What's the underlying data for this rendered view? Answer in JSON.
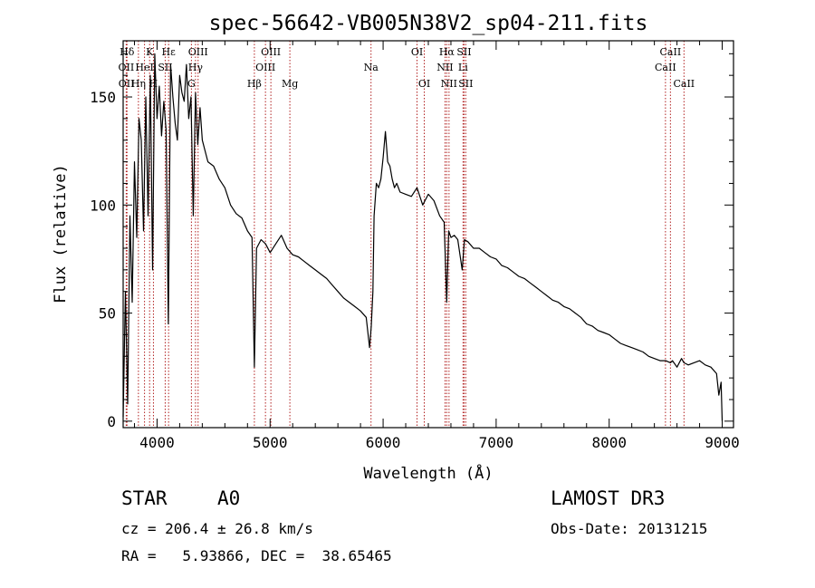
{
  "chart_data": {
    "type": "line",
    "title": "spec-56642-VB005N38V2_sp04-211.fits",
    "xlabel": "Wavelength (Å)",
    "ylabel": "Flux (relative)",
    "xlim": [
      3700,
      9100
    ],
    "ylim": [
      -3,
      176
    ],
    "xticks": [
      4000,
      5000,
      6000,
      7000,
      8000,
      9000
    ],
    "yticks": [
      0,
      50,
      100,
      150
    ],
    "grid": false,
    "series": [
      {
        "name": "flux",
        "x": [
          3700,
          3720,
          3740,
          3760,
          3780,
          3800,
          3820,
          3840,
          3860,
          3880,
          3900,
          3920,
          3940,
          3960,
          3980,
          4000,
          4020,
          4040,
          4060,
          4080,
          4100,
          4120,
          4140,
          4160,
          4180,
          4200,
          4220,
          4240,
          4260,
          4280,
          4300,
          4320,
          4340,
          4360,
          4380,
          4400,
          4450,
          4500,
          4550,
          4600,
          4650,
          4700,
          4750,
          4800,
          4840,
          4861,
          4880,
          4920,
          4960,
          5000,
          5050,
          5100,
          5150,
          5200,
          5250,
          5300,
          5350,
          5400,
          5450,
          5500,
          5550,
          5600,
          5650,
          5700,
          5750,
          5800,
          5850,
          5880,
          5895,
          5910,
          5920,
          5940,
          5960,
          5980,
          6000,
          6020,
          6040,
          6060,
          6080,
          6100,
          6120,
          6150,
          6200,
          6250,
          6300,
          6350,
          6400,
          6450,
          6500,
          6540,
          6563,
          6580,
          6600,
          6630,
          6660,
          6700,
          6720,
          6750,
          6800,
          6850,
          6900,
          6950,
          7000,
          7050,
          7100,
          7150,
          7200,
          7250,
          7300,
          7350,
          7400,
          7450,
          7500,
          7550,
          7600,
          7650,
          7700,
          7750,
          7800,
          7850,
          7900,
          7950,
          8000,
          8050,
          8100,
          8150,
          8200,
          8250,
          8300,
          8350,
          8400,
          8450,
          8500,
          8542,
          8560,
          8600,
          8640,
          8662,
          8700,
          8750,
          8800,
          8850,
          8900,
          8950,
          8970,
          8990,
          9000
        ],
        "y": [
          2,
          60,
          8,
          95,
          55,
          120,
          85,
          140,
          130,
          88,
          150,
          95,
          160,
          70,
          170,
          140,
          155,
          132,
          148,
          135,
          45,
          165,
          150,
          138,
          130,
          160,
          152,
          148,
          165,
          140,
          150,
          95,
          152,
          128,
          145,
          130,
          120,
          118,
          112,
          108,
          100,
          96,
          94,
          88,
          85,
          25,
          80,
          84,
          82,
          78,
          82,
          86,
          80,
          77,
          76,
          74,
          72,
          70,
          68,
          66,
          63,
          60,
          57,
          55,
          53,
          51,
          48,
          34,
          44,
          60,
          95,
          110,
          108,
          112,
          122,
          134,
          120,
          118,
          112,
          108,
          110,
          106,
          105,
          104,
          108,
          100,
          105,
          102,
          95,
          92,
          55,
          88,
          85,
          86,
          84,
          70,
          84,
          83,
          80,
          80,
          78,
          76,
          75,
          72,
          71,
          69,
          67,
          66,
          64,
          62,
          60,
          58,
          56,
          55,
          53,
          52,
          50,
          48,
          45,
          44,
          42,
          41,
          40,
          38,
          36,
          35,
          34,
          33,
          32,
          30,
          29,
          28,
          28,
          27,
          28,
          25,
          29,
          27,
          26,
          27,
          28,
          26,
          25,
          22,
          12,
          18,
          0
        ]
      }
    ],
    "lines": [
      {
        "label": "Hδ",
        "x": 3734,
        "row": 1
      },
      {
        "label": "OII",
        "x": 3727,
        "row": 2
      },
      {
        "label": "OII",
        "x": 3729,
        "row": 3
      },
      {
        "label": "K",
        "x": 3934,
        "row": 1
      },
      {
        "label": "HeI",
        "x": 3889,
        "row": 2
      },
      {
        "label": "Hη",
        "x": 3835,
        "row": 3
      },
      {
        "label": "Hε",
        "x": 4102,
        "row": 1
      },
      {
        "label": "SII",
        "x": 4072,
        "row": 2
      },
      {
        "label": "H",
        "x": 3968,
        "row": 3
      },
      {
        "label": "OIII",
        "x": 4363,
        "row": 1
      },
      {
        "label": "Hγ",
        "x": 4340,
        "row": 2
      },
      {
        "label": "G",
        "x": 4304,
        "row": 3
      },
      {
        "label": "Hβ",
        "x": 4861,
        "row": 3
      },
      {
        "label": "OIII",
        "x": 5007,
        "row": 1
      },
      {
        "label": "OIII",
        "x": 4959,
        "row": 2
      },
      {
        "label": "Mg",
        "x": 5175,
        "row": 3
      },
      {
        "label": "Na",
        "x": 5893,
        "row": 2
      },
      {
        "label": "OI",
        "x": 6300,
        "row": 1
      },
      {
        "label": "OI",
        "x": 6364,
        "row": 3
      },
      {
        "label": "Hα",
        "x": 6563,
        "row": 1
      },
      {
        "label": "SII",
        "x": 6716,
        "row": 1
      },
      {
        "label": "NII",
        "x": 6548,
        "row": 2
      },
      {
        "label": "Li",
        "x": 6707,
        "row": 2
      },
      {
        "label": "NII",
        "x": 6583,
        "row": 3
      },
      {
        "label": "SII",
        "x": 6731,
        "row": 3
      },
      {
        "label": "CaII",
        "x": 8542,
        "row": 1
      },
      {
        "label": "CaII",
        "x": 8498,
        "row": 2
      },
      {
        "label": "CaII",
        "x": 8662,
        "row": 3
      }
    ]
  },
  "info": {
    "class": "STAR",
    "subclass": "A0",
    "survey": "LAMOST DR3",
    "cz": "cz = 206.4 ± 26.8 km/s",
    "obs_date": "Obs-Date: 20131215",
    "radec": "RA =   5.93866, DEC =  38.65465"
  },
  "colors": {
    "axis": "#000000",
    "spectrum": "#000000",
    "line_marker": "#b22222"
  }
}
